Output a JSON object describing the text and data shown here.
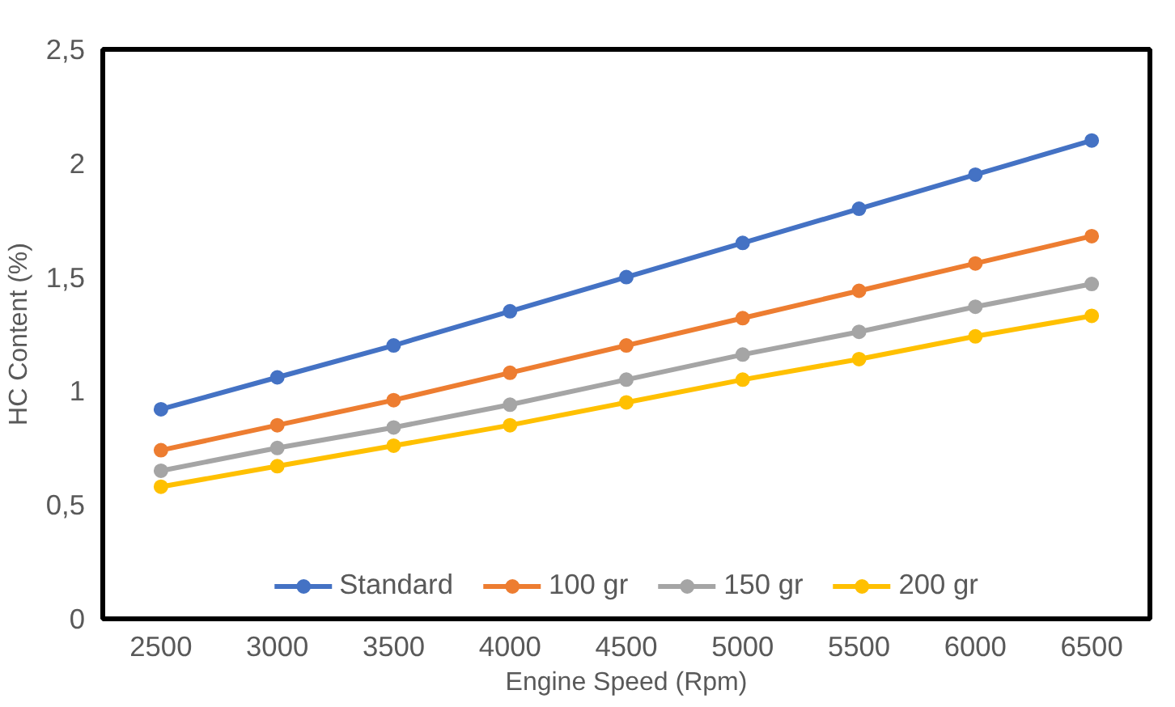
{
  "chart_data": {
    "type": "line",
    "xlabel": "Engine Speed (Rpm)",
    "ylabel": "HC Content (%)",
    "categories": [
      "2500",
      "3000",
      "3500",
      "4000",
      "4500",
      "5000",
      "5500",
      "6000",
      "6500"
    ],
    "ylim": [
      0,
      2.5
    ],
    "yticks": [
      0,
      {
        "value": 0.5,
        "label": "0,5"
      },
      1,
      {
        "value": 1.5,
        "label": "1,5"
      },
      2,
      {
        "value": 2.5,
        "label": "2,5"
      }
    ],
    "grid": false,
    "legend": "bottom",
    "marker": "circle",
    "line_style": "solid",
    "series": [
      {
        "name": "Standard",
        "color": "#4472c4",
        "values": [
          0.92,
          1.06,
          1.2,
          1.35,
          1.5,
          1.65,
          1.8,
          1.95,
          2.1
        ]
      },
      {
        "name": "100 gr",
        "color": "#ed7d31",
        "values": [
          0.74,
          0.85,
          0.96,
          1.08,
          1.2,
          1.32,
          1.44,
          1.56,
          1.68
        ]
      },
      {
        "name": "150 gr",
        "color": "#a5a5a5",
        "values": [
          0.65,
          0.75,
          0.84,
          0.94,
          1.05,
          1.16,
          1.26,
          1.37,
          1.47
        ]
      },
      {
        "name": "200 gr",
        "color": "#ffc000",
        "values": [
          0.58,
          0.67,
          0.76,
          0.85,
          0.95,
          1.05,
          1.14,
          1.24,
          1.33
        ]
      }
    ]
  }
}
